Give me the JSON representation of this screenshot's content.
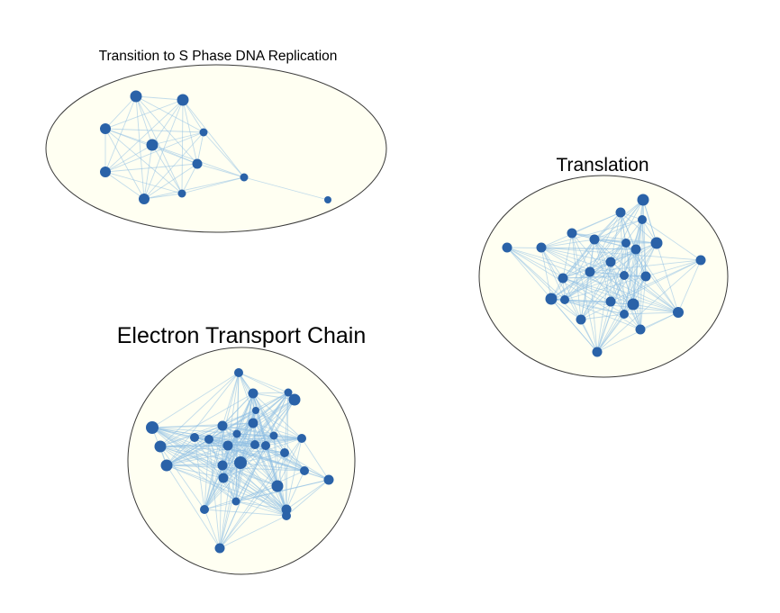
{
  "clusters": [
    {
      "id": "s-phase",
      "title": "Transition to S Phase DNA Replication",
      "node_count": 11
    },
    {
      "id": "translation",
      "title": "Translation",
      "node_count": 27
    },
    {
      "id": "etc",
      "title": "Electron Transport Chain",
      "node_count": 35
    }
  ],
  "colors": {
    "node": "#2a62a8",
    "edge": "#8fc0e3",
    "hull_fill": "#fffff2",
    "hull_stroke": "#3a3a3a"
  }
}
